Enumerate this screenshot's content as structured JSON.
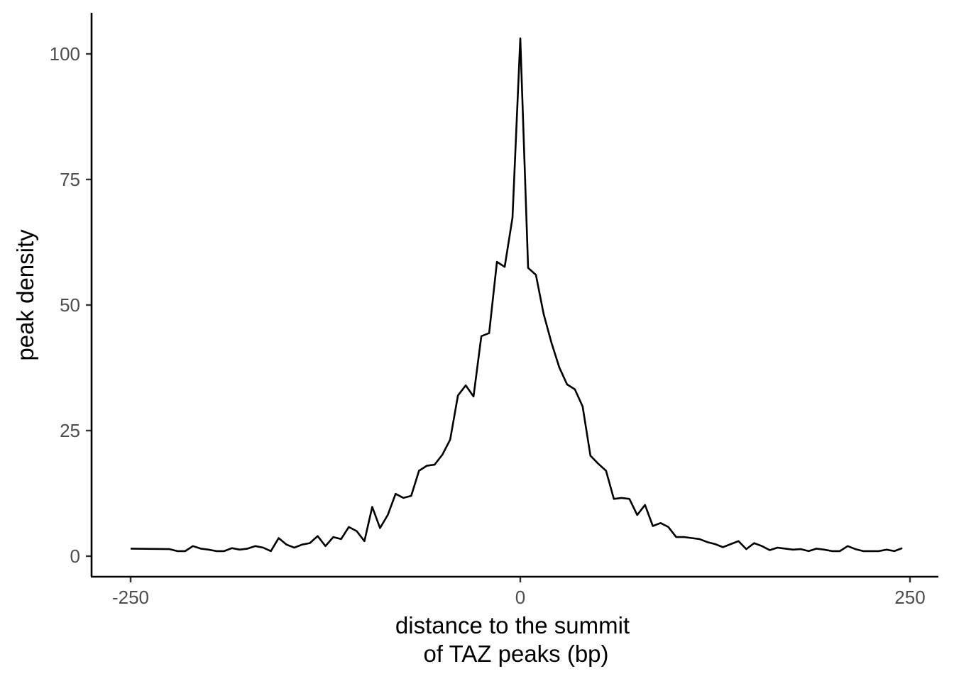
{
  "chart_data": {
    "type": "line",
    "title": "",
    "xlabel_lines": [
      "distance to the summit",
      "of TAZ peaks (bp)"
    ],
    "ylabel": "peak density",
    "xlim": [
      -250,
      250
    ],
    "ylim": [
      0,
      100
    ],
    "x_ticks": [
      -250,
      0,
      250
    ],
    "y_ticks": [
      0,
      25,
      50,
      75,
      100
    ],
    "x_tick_labels": [
      "-250",
      "0",
      "250"
    ],
    "y_tick_labels": [
      "0",
      "25",
      "50",
      "75",
      "100"
    ],
    "grid": false,
    "line_color": "#000000",
    "series": [
      {
        "x": [
          -250,
          -225,
          -220,
          -215,
          -210,
          -205,
          -200,
          -195,
          -190,
          -185,
          -180,
          -175,
          -170,
          -165,
          -160,
          -155,
          -150,
          -145,
          -140,
          -135,
          -130,
          -125,
          -120,
          -115,
          -110,
          -105,
          -100,
          -95,
          -90,
          -85,
          -80,
          -75,
          -70,
          -65,
          -60,
          -55,
          -50,
          -45,
          -40,
          -35,
          -30,
          -25,
          -20,
          -15,
          -10,
          -5,
          0,
          5,
          10,
          15,
          20,
          25,
          30,
          35,
          40,
          45,
          50,
          55,
          60,
          65,
          70,
          75,
          80,
          85,
          90,
          95,
          100,
          105,
          110,
          115,
          120,
          125,
          130,
          135,
          140,
          145,
          150,
          155,
          160,
          165,
          170,
          175,
          180,
          185,
          190,
          195,
          200,
          205,
          210,
          215,
          220,
          225,
          230,
          235,
          240,
          245
        ],
        "y": [
          1.5,
          1.4,
          1.0,
          1.0,
          2.0,
          1.5,
          1.3,
          1.0,
          1.0,
          1.6,
          1.3,
          1.5,
          2.0,
          1.7,
          1.0,
          3.6,
          2.3,
          1.7,
          2.3,
          2.6,
          4.0,
          2.0,
          3.8,
          3.4,
          5.8,
          5.0,
          3.0,
          9.8,
          5.6,
          8.2,
          12.4,
          11.6,
          12.0,
          17.0,
          18.0,
          18.2,
          20.2,
          23.2,
          32.0,
          34.0,
          31.8,
          43.8,
          44.4,
          58.6,
          57.6,
          67.4,
          103.1,
          57.4,
          56.0,
          48.2,
          42.5,
          37.6,
          34.2,
          33.2,
          29.8,
          20.0,
          18.4,
          17.0,
          11.4,
          11.6,
          11.4,
          8.2,
          10.2,
          6.0,
          6.6,
          5.8,
          3.8,
          3.8,
          3.6,
          3.4,
          2.8,
          2.4,
          1.8,
          2.4,
          3.0,
          1.4,
          2.6,
          2.0,
          1.2,
          1.7,
          1.5,
          1.3,
          1.4,
          1.0,
          1.5,
          1.3,
          1.0,
          1.0,
          2.0,
          1.4,
          1.0,
          1.0,
          1.0,
          1.3,
          1.0,
          1.6
        ]
      }
    ]
  }
}
